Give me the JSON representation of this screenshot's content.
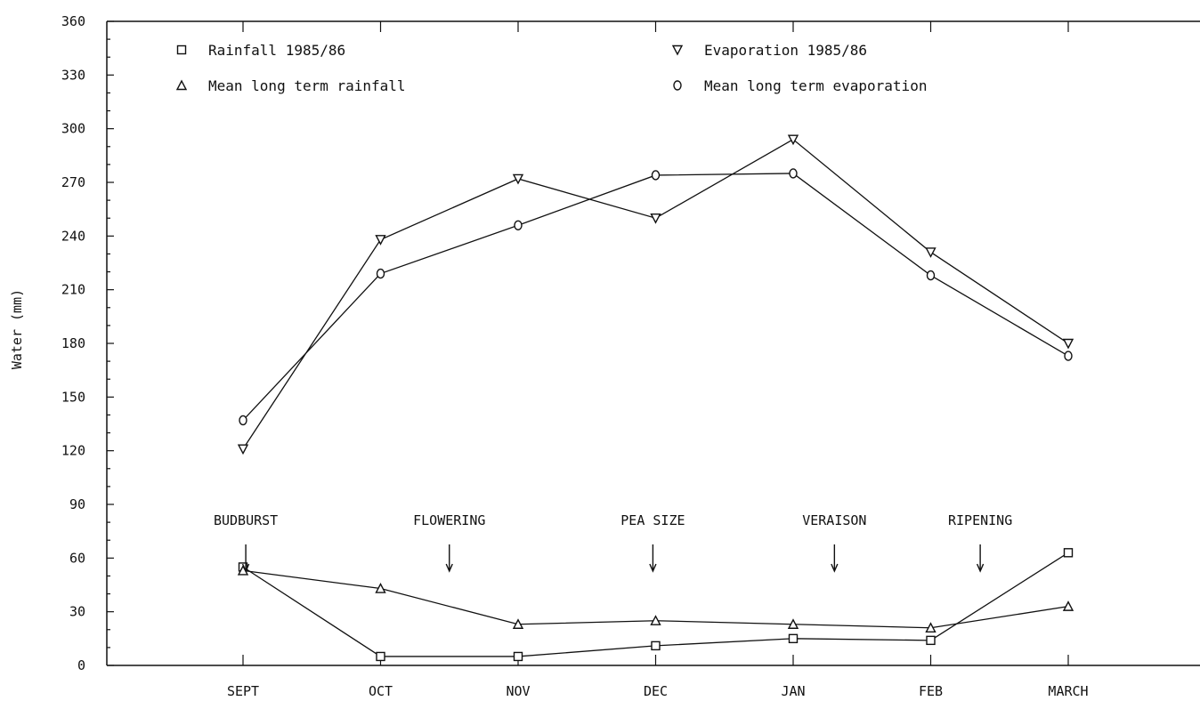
{
  "chart_data": {
    "type": "line",
    "ylabel": "Water (mm)",
    "xlabel": "",
    "ylim": [
      0,
      360
    ],
    "yticks": [
      0,
      30,
      60,
      90,
      120,
      150,
      180,
      210,
      240,
      270,
      300,
      330,
      360
    ],
    "categories": [
      "SEPT",
      "OCT",
      "NOV",
      "DEC",
      "JAN",
      "FEB",
      "MARCH"
    ],
    "series": [
      {
        "name": "Rainfall 1985/86",
        "marker": "square",
        "values": [
          55,
          5,
          5,
          11,
          15,
          14,
          63
        ]
      },
      {
        "name": "Evaporation 1985/86",
        "marker": "triangle-down",
        "values": [
          121,
          238,
          272,
          250,
          294,
          231,
          180
        ]
      },
      {
        "name": "Mean long term rainfall",
        "marker": "triangle-up",
        "values": [
          53,
          43,
          23,
          25,
          23,
          21,
          33
        ]
      },
      {
        "name": "Mean long term evaporation",
        "marker": "circle",
        "values": [
          137,
          219,
          246,
          274,
          275,
          218,
          173
        ]
      }
    ],
    "annotations": [
      {
        "text": "BUDBURST",
        "arrow_x": 0.02
      },
      {
        "text": "FLOWERING",
        "arrow_x": 1.5
      },
      {
        "text": "PEA SIZE",
        "arrow_x": 2.98
      },
      {
        "text": "VERAISON",
        "arrow_x": 4.3
      },
      {
        "text": "RIPENING",
        "arrow_x": 5.36
      }
    ],
    "legend_position": "top",
    "grid": false
  }
}
